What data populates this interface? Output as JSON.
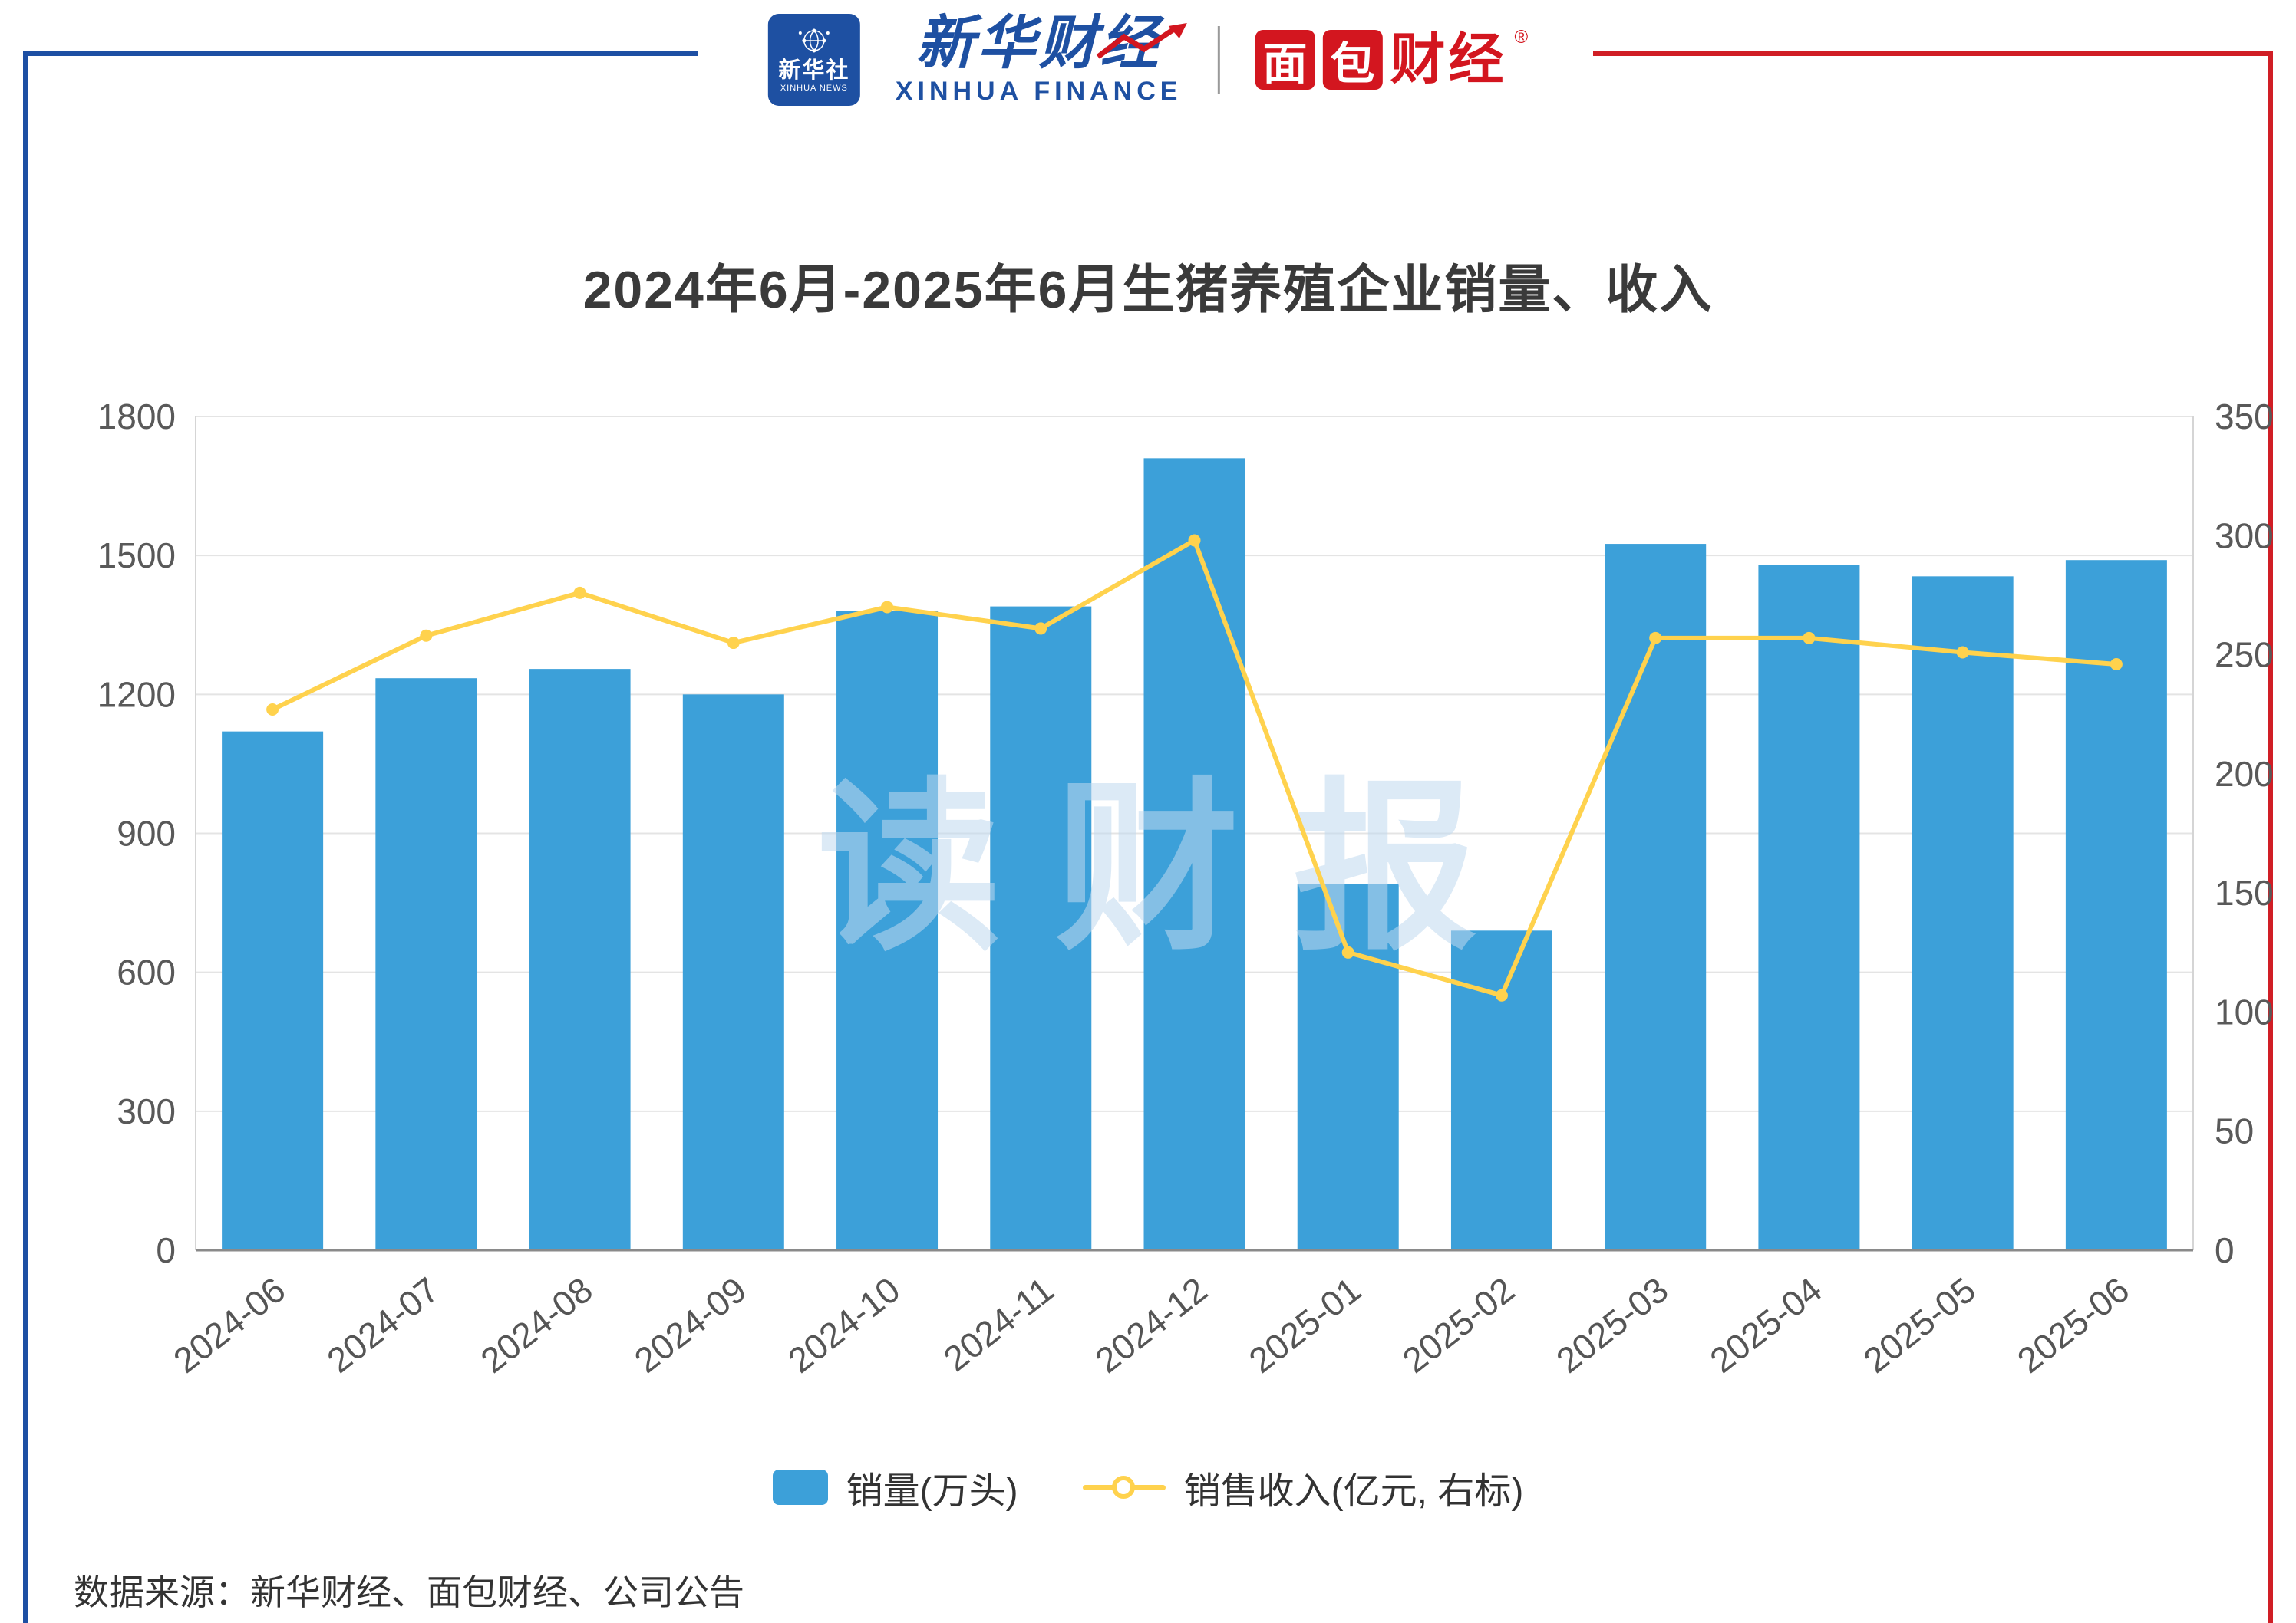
{
  "header": {
    "xinhua_news_logo": {
      "cn": "新华社",
      "en": "XINHUA NEWS"
    },
    "xinhua_finance_logo": {
      "cn": "新华财经",
      "en": "XINHUA FINANCE"
    },
    "bread_finance_logo": {
      "tile1": "面",
      "tile2": "包",
      "rest": "财经",
      "reg": "®"
    }
  },
  "title": "2024年6月-2025年6月生猪养殖企业销量、收入",
  "watermark": "读财报",
  "source_note": "数据来源：新华财经、面包财经、公司公告",
  "colors": {
    "bar": "#3CA0D9",
    "line": "#FFD24D",
    "frame_blue": "#1D4FA3",
    "frame_red": "#D01E25",
    "brand_blue": "#1E50A2",
    "brand_red": "#D3161F",
    "watermark": "#BFD9EF"
  },
  "chart_data": {
    "type": "bar+line",
    "title": "2024年6月-2025年6月生猪养殖企业销量、收入",
    "categories": [
      "2024-06",
      "2024-07",
      "2024-08",
      "2024-09",
      "2024-10",
      "2024-11",
      "2024-12",
      "2025-01",
      "2025-02",
      "2025-03",
      "2025-04",
      "2025-05",
      "2025-06"
    ],
    "series": [
      {
        "name": "销量(万头)",
        "type": "bar",
        "axis": "left",
        "values": [
          1120,
          1235,
          1255,
          1200,
          1380,
          1390,
          1710,
          790,
          690,
          1525,
          1480,
          1455,
          1490
        ]
      },
      {
        "name": "销售收入(亿元, 右标)",
        "type": "line",
        "axis": "right",
        "values": [
          227,
          258,
          276,
          255,
          270,
          261,
          298,
          125,
          107,
          257,
          257,
          251,
          246
        ]
      }
    ],
    "left_axis": {
      "min": 0,
      "max": 1800,
      "step": 300
    },
    "right_axis": {
      "min": 0,
      "max": 350,
      "step": 50
    },
    "grid": true,
    "legend_position": "bottom"
  }
}
